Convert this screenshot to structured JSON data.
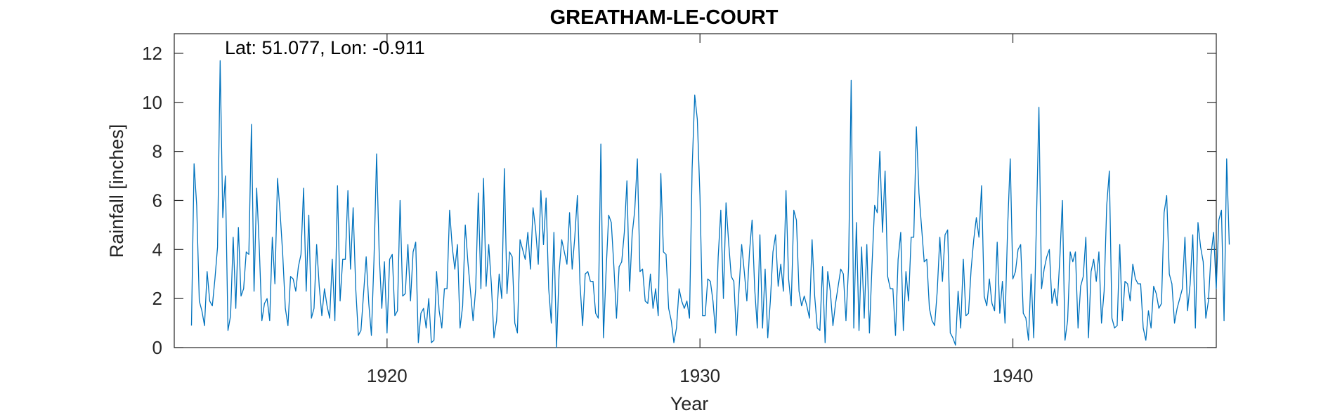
{
  "chart_data": {
    "type": "line",
    "title": "GREATHAM-LE-COURT",
    "xlabel": "Year",
    "ylabel": "Rainfall [inches]",
    "annotation": "Lat: 51.077, Lon: -0.911",
    "xlim": [
      1913.2,
      1946.5
    ],
    "ylim": [
      0,
      12.8
    ],
    "xticks": [
      1920,
      1930,
      1940
    ],
    "xtick_labels": [
      "1920",
      "1930",
      "1940"
    ],
    "yticks": [
      0,
      2,
      4,
      6,
      8,
      10,
      12
    ],
    "ytick_labels": [
      "0",
      "2",
      "4",
      "6",
      "8",
      "10",
      "12"
    ],
    "grid": false,
    "box": true,
    "series": [
      {
        "color": "#0072BD",
        "x_start": 1913.75,
        "x_step": 0.08333,
        "values": [
          0.9,
          7.5,
          5.8,
          1.9,
          1.5,
          0.9,
          3.1,
          1.9,
          1.7,
          2.8,
          4.1,
          11.7,
          5.3,
          7.0,
          0.7,
          1.3,
          4.5,
          1.6,
          4.9,
          2.1,
          2.4,
          3.9,
          3.8,
          9.1,
          2.3,
          6.5,
          4.1,
          1.1,
          1.8,
          2.0,
          1.1,
          4.5,
          2.6,
          6.9,
          5.5,
          3.8,
          1.6,
          0.9,
          2.9,
          2.8,
          2.3,
          3.3,
          3.8,
          6.5,
          2.3,
          5.4,
          1.2,
          1.6,
          4.2,
          2.5,
          1.3,
          2.4,
          1.7,
          1.2,
          3.6,
          1.1,
          6.6,
          1.9,
          3.6,
          3.6,
          6.4,
          3.2,
          5.7,
          2.4,
          0.5,
          0.7,
          2.2,
          3.7,
          1.8,
          0.5,
          3.6,
          7.9,
          3.8,
          1.6,
          3.5,
          0.6,
          3.6,
          3.8,
          1.3,
          1.5,
          6.0,
          2.1,
          2.2,
          4.2,
          1.9,
          3.9,
          4.3,
          0.2,
          1.4,
          1.6,
          0.8,
          2.0,
          0.2,
          0.3,
          3.1,
          1.5,
          0.8,
          2.4,
          2.4,
          5.6,
          4.1,
          3.2,
          4.2,
          0.8,
          1.7,
          5.0,
          3.5,
          2.3,
          1.1,
          2.4,
          6.3,
          2.4,
          6.9,
          2.5,
          4.2,
          2.6,
          0.4,
          1.1,
          3.0,
          2.0,
          7.3,
          2.2,
          3.9,
          3.7,
          1.0,
          0.6,
          4.4,
          4.0,
          3.6,
          4.7,
          3.2,
          5.7,
          4.8,
          3.4,
          6.4,
          4.2,
          6.1,
          2.4,
          1.0,
          4.7,
          0.0,
          3.1,
          4.4,
          3.9,
          3.4,
          5.5,
          3.2,
          4.5,
          6.2,
          2.6,
          0.9,
          3.0,
          3.1,
          2.7,
          2.7,
          1.4,
          1.2,
          8.3,
          0.4,
          3.1,
          5.4,
          5.1,
          3.3,
          1.2,
          3.3,
          3.5,
          4.7,
          6.8,
          2.3,
          4.6,
          5.6,
          7.7,
          3.1,
          3.2,
          1.9,
          1.8,
          3.0,
          1.6,
          2.4,
          1.3,
          7.1,
          3.9,
          3.8,
          1.6,
          1.1,
          0.2,
          0.8,
          2.4,
          1.9,
          1.6,
          1.9,
          1.2,
          7.3,
          10.3,
          9.3,
          6.2,
          1.3,
          1.3,
          2.8,
          2.7,
          1.9,
          0.6,
          3.7,
          5.6,
          2.0,
          5.9,
          4.3,
          2.9,
          2.7,
          0.5,
          2.4,
          4.2,
          3.1,
          1.9,
          3.9,
          5.2,
          2.4,
          0.8,
          4.6,
          0.8,
          3.2,
          0.4,
          1.9,
          3.9,
          4.6,
          2.5,
          3.4,
          2.3,
          6.4,
          2.8,
          1.7,
          5.6,
          5.2,
          2.3,
          1.7,
          2.1,
          1.7,
          1.2,
          4.4,
          2.1,
          0.8,
          0.7,
          3.3,
          0.2,
          3.1,
          2.3,
          0.9,
          1.8,
          2.5,
          3.2,
          3.0,
          1.1,
          3.3,
          10.9,
          0.8,
          5.1,
          0.7,
          4.1,
          1.2,
          4.2,
          0.6,
          3.4,
          5.8,
          5.5,
          8.0,
          4.7,
          7.2,
          2.9,
          2.4,
          2.4,
          0.5,
          3.6,
          4.7,
          0.7,
          3.1,
          1.9,
          4.5,
          4.5,
          9.0,
          6.3,
          4.9,
          3.5,
          3.6,
          1.6,
          1.1,
          0.9,
          2.3,
          4.5,
          2.7,
          4.6,
          4.8,
          0.6,
          0.4,
          0.1,
          2.3,
          0.8,
          3.6,
          1.3,
          1.4,
          3.2,
          4.4,
          5.3,
          4.5,
          6.6,
          2.1,
          1.7,
          2.8,
          1.8,
          1.5,
          4.3,
          1.4,
          2.7,
          1.0,
          4.9,
          7.7,
          2.8,
          3.1,
          4.0,
          4.2,
          1.4,
          1.2,
          0.3,
          3.0,
          0.4,
          4.9,
          9.8,
          2.4,
          3.2,
          3.7,
          4.0,
          1.8,
          2.4,
          1.7,
          3.6,
          6.0,
          0.3,
          1.1,
          3.9,
          3.5,
          3.9,
          0.8,
          2.5,
          2.9,
          4.5,
          0.4,
          3.1,
          3.6,
          2.7,
          3.9,
          1.0,
          2.3,
          5.8,
          7.2,
          1.2,
          0.8,
          0.9,
          4.2,
          1.1,
          2.7,
          2.6,
          1.9,
          3.4,
          2.8,
          2.6,
          2.6,
          0.8,
          0.3,
          1.5,
          0.8,
          2.5,
          2.2,
          1.6,
          1.8,
          5.5,
          6.2,
          3.0,
          2.6,
          1.0,
          1.6,
          2.0,
          2.4,
          4.5,
          1.5,
          2.6,
          4.6,
          0.8,
          5.1,
          4.1,
          3.5,
          1.2,
          1.9,
          3.8,
          4.7,
          2.4,
          5.2,
          5.6,
          1.1,
          7.7,
          4.2
        ]
      }
    ]
  }
}
